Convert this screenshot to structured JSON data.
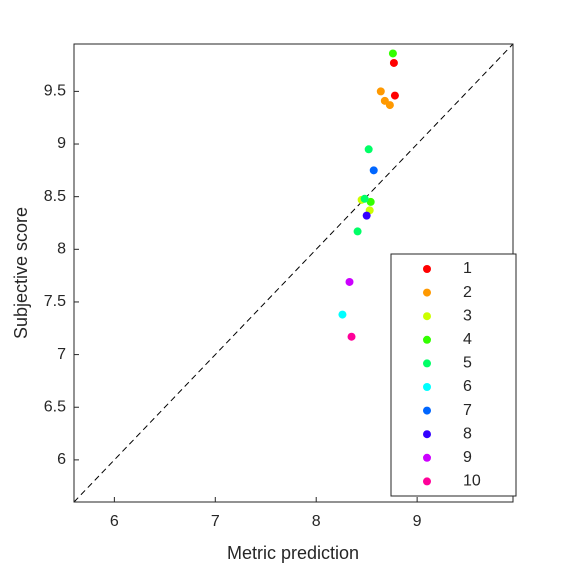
{
  "chart_data": {
    "type": "scatter",
    "xlabel": "Metric prediction",
    "ylabel": "Subjective score",
    "xlim": [
      5.6,
      9.95
    ],
    "ylim": [
      5.6,
      9.95
    ],
    "xticks": [
      6,
      7,
      8,
      9
    ],
    "yticks": [
      6,
      6.5,
      7,
      7.5,
      8,
      8.5,
      9,
      9.5
    ],
    "legend": "lower right",
    "series": [
      {
        "name": "1",
        "color": "#ff0000",
        "x": [
          8.77,
          8.78
        ],
        "values": [
          9.77,
          9.46
        ]
      },
      {
        "name": "2",
        "color": "#ff9900",
        "x": [
          8.64,
          8.68,
          8.73
        ],
        "values": [
          9.5,
          9.41,
          9.37
        ]
      },
      {
        "name": "3",
        "color": "#ccff00",
        "x": [
          8.45,
          8.53
        ],
        "values": [
          8.47,
          8.37
        ]
      },
      {
        "name": "4",
        "color": "#33ff00",
        "x": [
          8.76,
          8.54
        ],
        "values": [
          9.86,
          8.45
        ]
      },
      {
        "name": "5",
        "color": "#00ff66",
        "x": [
          8.52,
          8.48,
          8.41
        ],
        "values": [
          8.95,
          8.48,
          8.17
        ]
      },
      {
        "name": "6",
        "color": "#00ffff",
        "x": [
          8.26
        ],
        "values": [
          7.38
        ]
      },
      {
        "name": "7",
        "color": "#0066ff",
        "x": [
          8.57
        ],
        "values": [
          8.75
        ]
      },
      {
        "name": "8",
        "color": "#3300ff",
        "x": [
          8.5
        ],
        "values": [
          8.32
        ]
      },
      {
        "name": "9",
        "color": "#cc00ff",
        "x": [
          8.33
        ],
        "values": [
          7.69
        ]
      },
      {
        "name": "10",
        "color": "#ff0099",
        "x": [
          8.35
        ],
        "values": [
          7.17
        ]
      }
    ]
  }
}
